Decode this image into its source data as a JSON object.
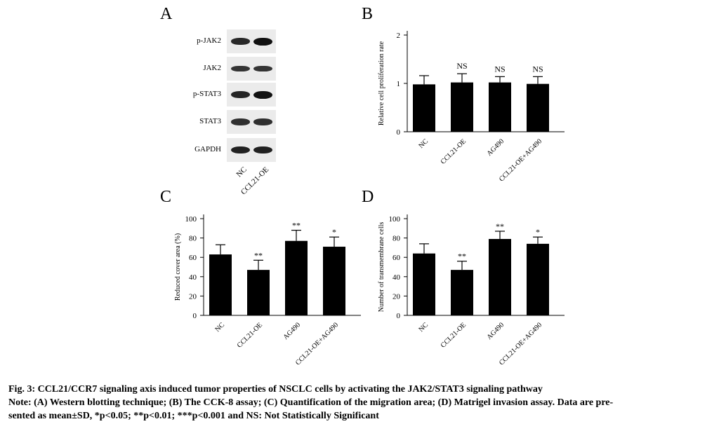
{
  "panel_letters": {
    "a": "A",
    "b": "B",
    "c": "C",
    "d": "D"
  },
  "blot": {
    "rows": [
      {
        "label": "p-JAK2",
        "lane1": 0.75,
        "lane2": 1.0
      },
      {
        "label": "JAK2",
        "lane1": 0.65,
        "lane2": 0.65
      },
      {
        "label": "p-STAT3",
        "lane1": 0.8,
        "lane2": 1.0
      },
      {
        "label": "STAT3",
        "lane1": 0.7,
        "lane2": 0.7
      },
      {
        "label": "GAPDH",
        "lane1": 0.85,
        "lane2": 0.85
      }
    ],
    "lanes": [
      "NC",
      "CCL21-OE"
    ]
  },
  "chart_data": [
    {
      "type": "bar",
      "panel": "B",
      "categories": [
        "NC",
        "CCL21-OE",
        "AG490",
        "CCL21-OE+AG490"
      ],
      "values": [
        0.98,
        1.02,
        1.02,
        0.99
      ],
      "errors": [
        0.18,
        0.18,
        0.12,
        0.15
      ],
      "annotations": [
        "",
        "NS",
        "NS",
        "NS"
      ],
      "ylabel": "Relative cell proliferation rate",
      "ylim": [
        0,
        2
      ],
      "yticks": [
        0,
        1,
        2
      ],
      "grid": false
    },
    {
      "type": "bar",
      "panel": "C",
      "categories": [
        "NC",
        "CCL21-OE",
        "AG490",
        "CCL21-OE+AG490"
      ],
      "values": [
        63,
        47,
        77,
        71
      ],
      "errors": [
        10,
        10,
        11,
        10
      ],
      "annotations": [
        "",
        "**",
        "**",
        "*"
      ],
      "ylabel": "Reduced cover area (%)",
      "ylim": [
        0,
        100
      ],
      "yticks": [
        0,
        20,
        40,
        60,
        80,
        100
      ],
      "grid": false
    },
    {
      "type": "bar",
      "panel": "D",
      "categories": [
        "NC",
        "CCL21-OE",
        "AG490",
        "CCL21-OE+AG490"
      ],
      "values": [
        64,
        47,
        79,
        74
      ],
      "errors": [
        10,
        9,
        8,
        7
      ],
      "annotations": [
        "",
        "**",
        "**",
        "*"
      ],
      "ylabel": "Number of transmembrane cells",
      "ylim": [
        0,
        100
      ],
      "yticks": [
        0,
        20,
        40,
        60,
        80,
        100
      ],
      "grid": false
    }
  ],
  "caption": {
    "title": "Fig. 3: CCL21/CCR7 signaling axis induced tumor properties of NSCLC cells by activating the JAK2/STAT3 signaling pathway",
    "note_line1": "Note: (A) Western blotting technique; (B) The CCK-8 assay; (C) Quantification of the migration area; (D) Matrigel invasion assay. Data are pre-",
    "note_line2": "sented as mean±SD, *p<0.05; **p<0.01; ***p<0.001 and NS: Not Statistically Significant"
  },
  "colors": {
    "bar": "#000000",
    "blot_bg": "#ebebeb",
    "band": "#111111"
  }
}
